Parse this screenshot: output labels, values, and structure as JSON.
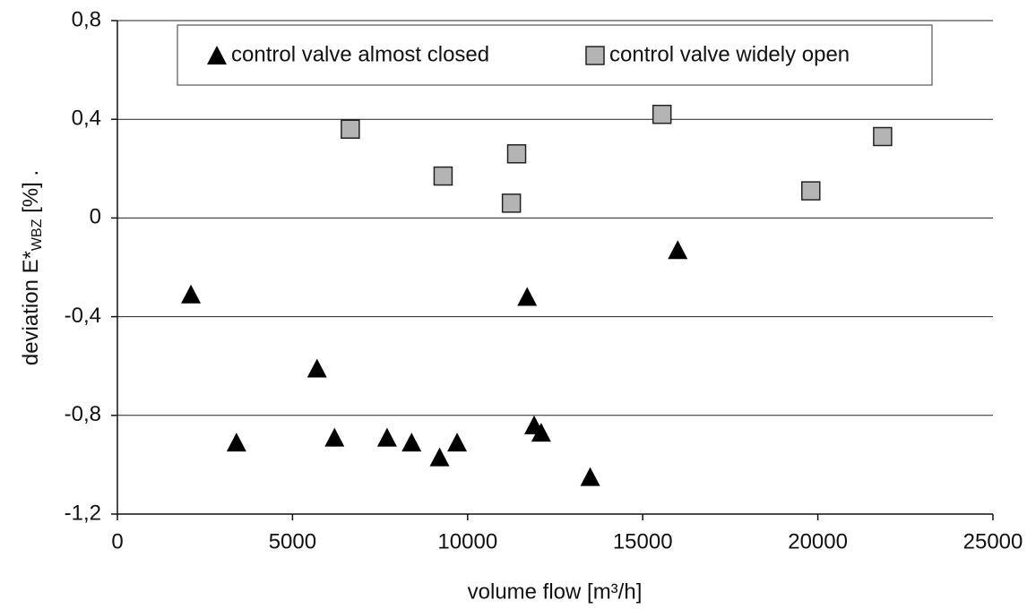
{
  "chart_data": {
    "type": "scatter",
    "xlabel": "volume flow [m³/h]",
    "ylabel": "deviation E*",
    "ylabel_subscript": "WBZ",
    "ylabel_suffix": " [%] .",
    "xlim": [
      0,
      25000
    ],
    "xticks": [
      0,
      5000,
      10000,
      15000,
      20000,
      25000
    ],
    "ylim": [
      -1.2,
      0.8
    ],
    "yticks": [
      {
        "value": -1.2,
        "label": "-1,2"
      },
      {
        "value": -0.8,
        "label": "-0,8"
      },
      {
        "value": -0.4,
        "label": "-0,4"
      },
      0,
      {
        "value": 0.4,
        "label": "0,4"
      },
      {
        "value": 0.8,
        "label": "0,8"
      }
    ],
    "grid": true,
    "legend": "top",
    "series": [
      {
        "name": "control valve almost closed",
        "color": "#000000",
        "marker": "triangle",
        "x": [
          2100,
          3400,
          5700,
          6200,
          7700,
          8400,
          9200,
          9700,
          11700,
          11900,
          12100,
          13500,
          16000
        ],
        "values": [
          -0.31,
          -0.91,
          -0.61,
          -0.89,
          -0.89,
          -0.91,
          -0.97,
          -0.91,
          -0.32,
          -0.84,
          -0.87,
          -1.05,
          -0.13
        ]
      },
      {
        "name": "control valve widely open",
        "color": "#b4b4b4",
        "marker": "square",
        "x": [
          6650,
          9300,
          11400,
          11250,
          15550,
          19800,
          21850
        ],
        "values": [
          0.36,
          0.17,
          0.26,
          0.06,
          0.42,
          0.11,
          0.33
        ]
      }
    ]
  }
}
